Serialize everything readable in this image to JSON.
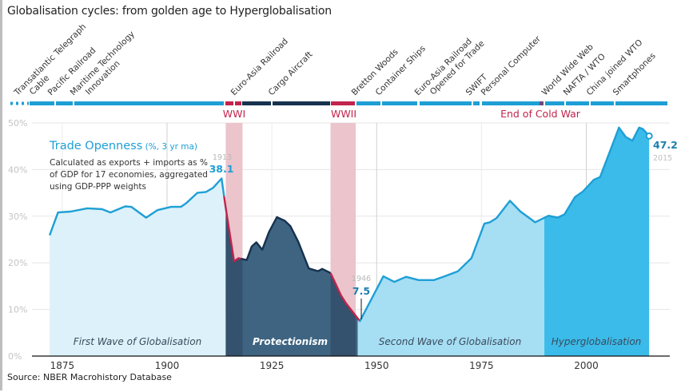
{
  "title": "Globalisation cycles: from golden age to Hyperglobalisation",
  "source": "Source: NBER Macrohistory Database",
  "colors": {
    "line_blue": "#1e9fd5",
    "line_dark": "#16324f",
    "war_red": "#c1244c",
    "war_band": "#ebc4cc",
    "first_wave_fill": "#dcf1fa",
    "protectionism_fill": "#3e6482",
    "protectionism_war_fill": "#34516d",
    "second_wave_fill": "#a6def4",
    "hyper_fill": "#3bbbea",
    "grid": "#e6e6e6"
  },
  "milestones": [
    {
      "label": [
        "Transatlantic Telegraph",
        "Cable"
      ]
    },
    {
      "label": [
        "Pacific Railroad"
      ]
    },
    {
      "label": [
        "Maritime Technology",
        "Innovation"
      ]
    },
    {
      "label": [
        "Euro-Asia Railroad"
      ]
    },
    {
      "label": [
        "Cargo Aircraft"
      ]
    },
    {
      "label": [
        "Bretton Woods"
      ]
    },
    {
      "label": [
        "Container Ships"
      ]
    },
    {
      "label": [
        "Euro-Asia Railroad",
        "Opened for Trade"
      ]
    },
    {
      "label": [
        "SWIFT"
      ]
    },
    {
      "label": [
        "Personal Computer"
      ]
    },
    {
      "label": [
        "World Wide Web"
      ]
    },
    {
      "label": [
        "NAFTA / WTO"
      ]
    },
    {
      "label": [
        "China joined WTO"
      ]
    },
    {
      "label": [
        "Smartphones"
      ]
    }
  ],
  "events": {
    "wwi": "WWI",
    "wwii": "WWII",
    "cold_war": "End of Cold War"
  },
  "chart_data": {
    "type": "area",
    "series_title": "Trade Openness",
    "series_unit": "(%, 3 yr ma)",
    "description": [
      "Calculated as exports + imports as %",
      "of GDP for 17 economies, aggregated",
      "using GDP-PPP weights"
    ],
    "ylim": [
      0,
      50
    ],
    "yticks": [
      "0%",
      "10%",
      "20%",
      "30%",
      "40%",
      "50%"
    ],
    "xticks": [
      1875,
      1900,
      1925,
      1950,
      1975,
      2000
    ],
    "grid": true,
    "x": [
      1872,
      1874,
      1877,
      1881,
      1884.5,
      1886.5,
      1890,
      1891.5,
      1895,
      1897.7,
      1901,
      1903.3,
      1904.6,
      1907.2,
      1909.3,
      1911,
      1913,
      1914,
      1916,
      1917,
      1919,
      1920.2,
      1921.3,
      1922.7,
      1924.3,
      1926.2,
      1928.1,
      1929.4,
      1931.3,
      1933.8,
      1936,
      1937,
      1939,
      1941.5,
      1942.7,
      1946,
      1951.6,
      1954.2,
      1957,
      1960,
      1963.7,
      1966.2,
      1969.4,
      1972.6,
      1975.7,
      1977,
      1978.6,
      1981.8,
      1984.3,
      1987.8,
      1991,
      1993.2,
      1994.8,
      1997.3,
      1999.2,
      2001.8,
      2003.3,
      2007.8,
      2009.4,
      2011,
      2012.6,
      2013.5,
      2015
    ],
    "y": [
      25.9,
      30.8,
      31,
      31.7,
      31.5,
      30.8,
      32.1,
      32,
      29.7,
      31.3,
      32,
      32,
      32.8,
      35,
      35.2,
      36.1,
      38.1,
      31.8,
      20.3,
      21,
      20.6,
      23.5,
      24.4,
      22.8,
      26.6,
      29.8,
      29,
      27.9,
      24.5,
      18.8,
      18.2,
      18.7,
      17.8,
      13,
      11.3,
      7.5,
      17.1,
      15.9,
      17,
      16.3,
      16.3,
      17.1,
      18.2,
      21,
      28.4,
      28.7,
      29.6,
      33.3,
      31,
      28.7,
      30.1,
      29.7,
      30.4,
      34.1,
      35.3,
      37.8,
      38.4,
      49,
      47,
      46.2,
      49,
      48.7,
      47.2
    ],
    "annotations": [
      {
        "year": "1913",
        "value": "38.1"
      },
      {
        "year": "1946",
        "value": "7.5"
      },
      {
        "year": "2015",
        "value": "47.2"
      }
    ],
    "periods": [
      {
        "name": "First Wave of Globalisation",
        "from": 1872,
        "to": 1914
      },
      {
        "name": "Protectionism",
        "from": 1914,
        "to": 1945.5
      },
      {
        "name": "Second Wave of Globalisation",
        "from": 1945.5,
        "to": 1990
      },
      {
        "name": "Hyperglobalisation",
        "from": 1990,
        "to": 2015
      }
    ],
    "wars": [
      {
        "name": "WWI",
        "from": 1914,
        "to": 1918
      },
      {
        "name": "WWII",
        "from": 1939,
        "to": 1945
      }
    ]
  }
}
